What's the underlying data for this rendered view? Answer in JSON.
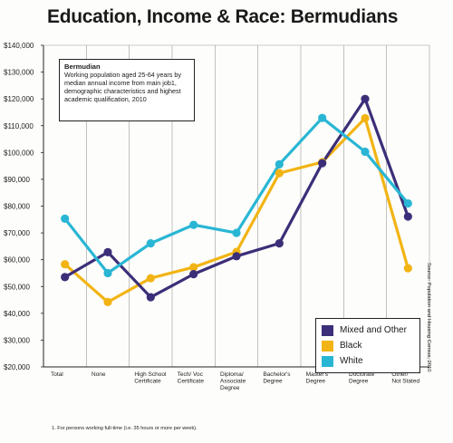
{
  "title": "Education, Income & Race: Bermudians",
  "note": {
    "title": "Bermudian",
    "text": "Working population aged 25-64 years by median annual income from main job1, demographic characteristics and highest academic qualification, 2010"
  },
  "source": "Source: Population and Housing Census, 2010",
  "footnote": "1. For persons working full-time (i.e. 35 hours or more per week).",
  "chart_data": {
    "type": "line",
    "categories": [
      [
        "Total"
      ],
      [
        "None"
      ],
      [
        "High School",
        "Certificate"
      ],
      [
        "Tech/ Voc",
        "Certificate"
      ],
      [
        "Diploma/",
        "Associate",
        "Degree"
      ],
      [
        "Bachelor's",
        "Degree"
      ],
      [
        "Master's",
        "Degree"
      ],
      [
        "Doctorate",
        "Degree"
      ],
      [
        "Other/",
        "Not Stated"
      ]
    ],
    "ylim": [
      20000,
      140000
    ],
    "yticks": [
      "$20,000",
      "$30,000",
      "$40,000",
      "$50,000",
      "$60,000",
      "$70,000",
      "$80,000",
      "$90,000",
      "$100,000",
      "$110,000",
      "$120,000",
      "$130,000",
      "$140,000"
    ],
    "grid": "vertical",
    "legend_position": "bottom-right",
    "series": [
      {
        "name": "Mixed and Other",
        "color": "#3c2e78",
        "values": [
          53500,
          62800,
          46000,
          54600,
          61300,
          66100,
          96000,
          120000,
          76100
        ]
      },
      {
        "name": "Black",
        "color": "#f2b414",
        "values": [
          58300,
          44200,
          53100,
          57200,
          62900,
          92300,
          96400,
          112800,
          56800
        ]
      },
      {
        "name": "White",
        "color": "#29b6d4",
        "values": [
          75300,
          55000,
          66100,
          73000,
          70000,
          95600,
          112900,
          100300,
          81000
        ]
      }
    ]
  }
}
